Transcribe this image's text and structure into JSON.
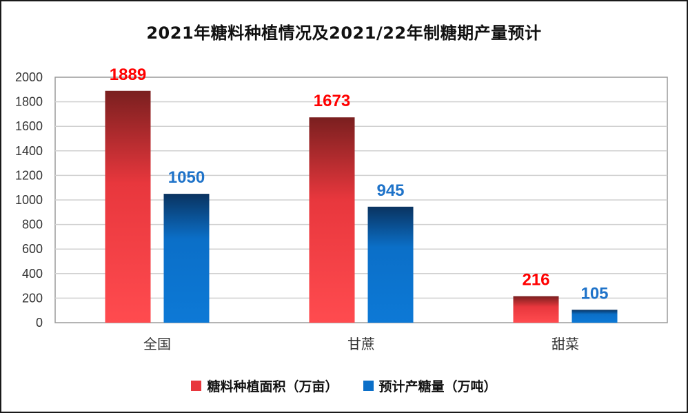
{
  "chart_data": {
    "type": "bar",
    "title": "2021年糖料种植情况及2021/22年制糖期产量预计",
    "categories": [
      "全国",
      "甘蔗",
      "甜菜"
    ],
    "series": [
      {
        "name": "糖料种植面积（万亩）",
        "values": [
          1889,
          1673,
          216
        ],
        "color": "#e8373d",
        "label_color": "#ff0000"
      },
      {
        "name": "预计产糖量（万吨）",
        "values": [
          1050,
          945,
          105
        ],
        "color": "#0b6fc8",
        "label_color": "#1f73c9"
      }
    ],
    "yticks": [
      "0",
      "200",
      "400",
      "600",
      "800",
      "1000",
      "1200",
      "1400",
      "1600",
      "1800",
      "2000"
    ],
    "ylim": [
      0,
      2000
    ],
    "grid": true,
    "legend_position": "bottom",
    "xlabel": "",
    "ylabel": ""
  }
}
